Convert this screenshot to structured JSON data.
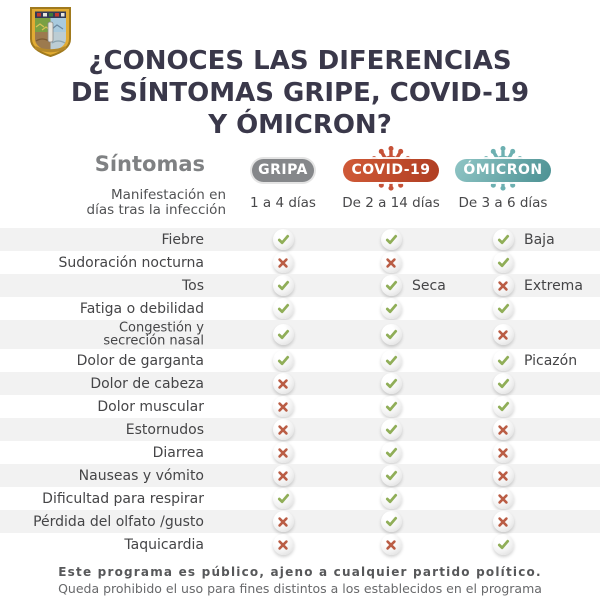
{
  "title": {
    "lines": [
      "¿CONOCES LAS DIFERENCIAS",
      "DE SÍNTOMAS GRIPE, COVID-19",
      "Y ÓMICRON?"
    ]
  },
  "header": {
    "symptoms_label": "Síntomas",
    "manifestation_lines": [
      "Manifestación en",
      "días tras la infección"
    ],
    "columns": [
      {
        "id": "gripa",
        "label": "GRIPA",
        "days": "1 a 4 días"
      },
      {
        "id": "covid",
        "label": "COVID-19",
        "days": "De 2 a 14 días"
      },
      {
        "id": "omicron",
        "label": "ÓMICRON",
        "days": "De 3 a 6 días"
      }
    ]
  },
  "icons": {
    "logo": "state-coat-of-arms",
    "covid_virus": "coronavirus-icon",
    "omicron_virus": "coronavirus-icon",
    "check": "check-icon",
    "cross": "cross-icon"
  },
  "colors": {
    "title": "#3a384a",
    "gripa_pill": "#85878a",
    "covid_pill": "#c04a2c",
    "omicron_pill": "#5fa0a1",
    "check": "#90ae58",
    "cross": "#ba5d45",
    "row_stripe": "#f2f2f2"
  },
  "rows": [
    {
      "label": "Fiebre",
      "gripa": "check",
      "covid": "check",
      "omicron": "check",
      "omicron_note": "Baja"
    },
    {
      "label": "Sudoración nocturna",
      "gripa": "cross",
      "covid": "cross",
      "omicron": "check"
    },
    {
      "label": "Tos",
      "gripa": "check",
      "covid": "check",
      "covid_note": "Seca",
      "omicron": "cross",
      "omicron_note": "Extrema"
    },
    {
      "label": "Fatiga o debilidad",
      "gripa": "check",
      "covid": "check",
      "omicron": "check"
    },
    {
      "label": "Congestión y secreción nasal",
      "label_lines": [
        "Congestión y",
        "secreción nasal"
      ],
      "gripa": "check",
      "covid": "check",
      "omicron": "cross"
    },
    {
      "label": "Dolor de garganta",
      "gripa": "check",
      "covid": "check",
      "omicron": "check",
      "omicron_note": "Picazón"
    },
    {
      "label": "Dolor de cabeza",
      "gripa": "cross",
      "covid": "check",
      "omicron": "check"
    },
    {
      "label": "Dolor muscular",
      "gripa": "cross",
      "covid": "check",
      "omicron": "check"
    },
    {
      "label": "Estornudos",
      "gripa": "cross",
      "covid": "check",
      "omicron": "cross"
    },
    {
      "label": "Diarrea",
      "gripa": "cross",
      "covid": "check",
      "omicron": "cross"
    },
    {
      "label": "Nauseas y vómito",
      "gripa": "cross",
      "covid": "check",
      "omicron": "cross"
    },
    {
      "label": "Dificultad para respirar",
      "gripa": "check",
      "covid": "check",
      "omicron": "cross"
    },
    {
      "label": "Pérdida del olfato /gusto",
      "gripa": "cross",
      "covid": "check",
      "omicron": "cross"
    },
    {
      "label": "Taquicardia",
      "gripa": "cross",
      "covid": "cross",
      "omicron": "check"
    }
  ],
  "footer": {
    "line1": "Este programa es público, ajeno a cualquier partido político.",
    "line2": "Queda prohibido el uso para fines distintos a los establecidos en el programa"
  }
}
